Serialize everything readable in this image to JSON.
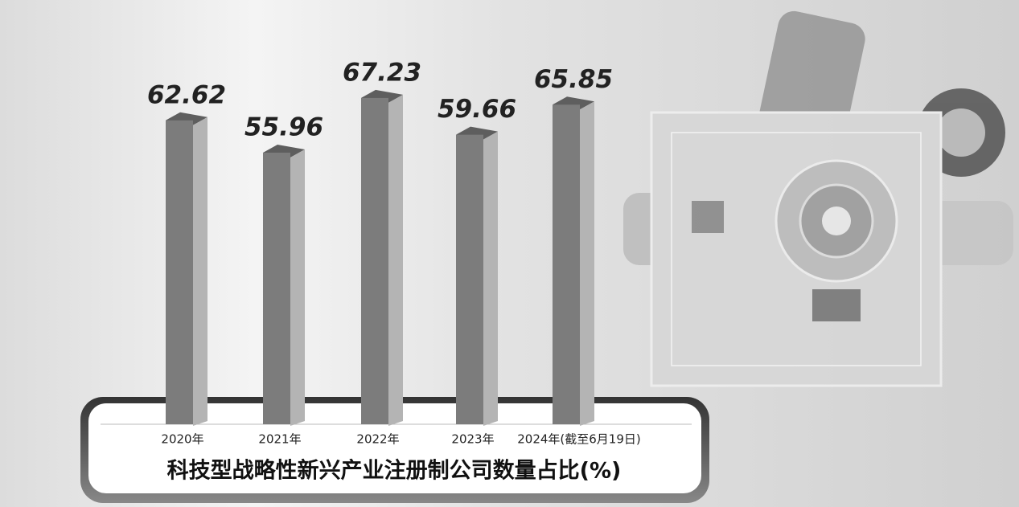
{
  "chart_data": {
    "type": "bar",
    "title": "科技型战略性新兴产业注册制公司数量占比(%)",
    "categories": [
      "2020年",
      "2021年",
      "2022年",
      "2023年",
      "2024年(截至6月19日)"
    ],
    "values": [
      62.62,
      55.96,
      67.23,
      59.66,
      65.85
    ]
  }
}
